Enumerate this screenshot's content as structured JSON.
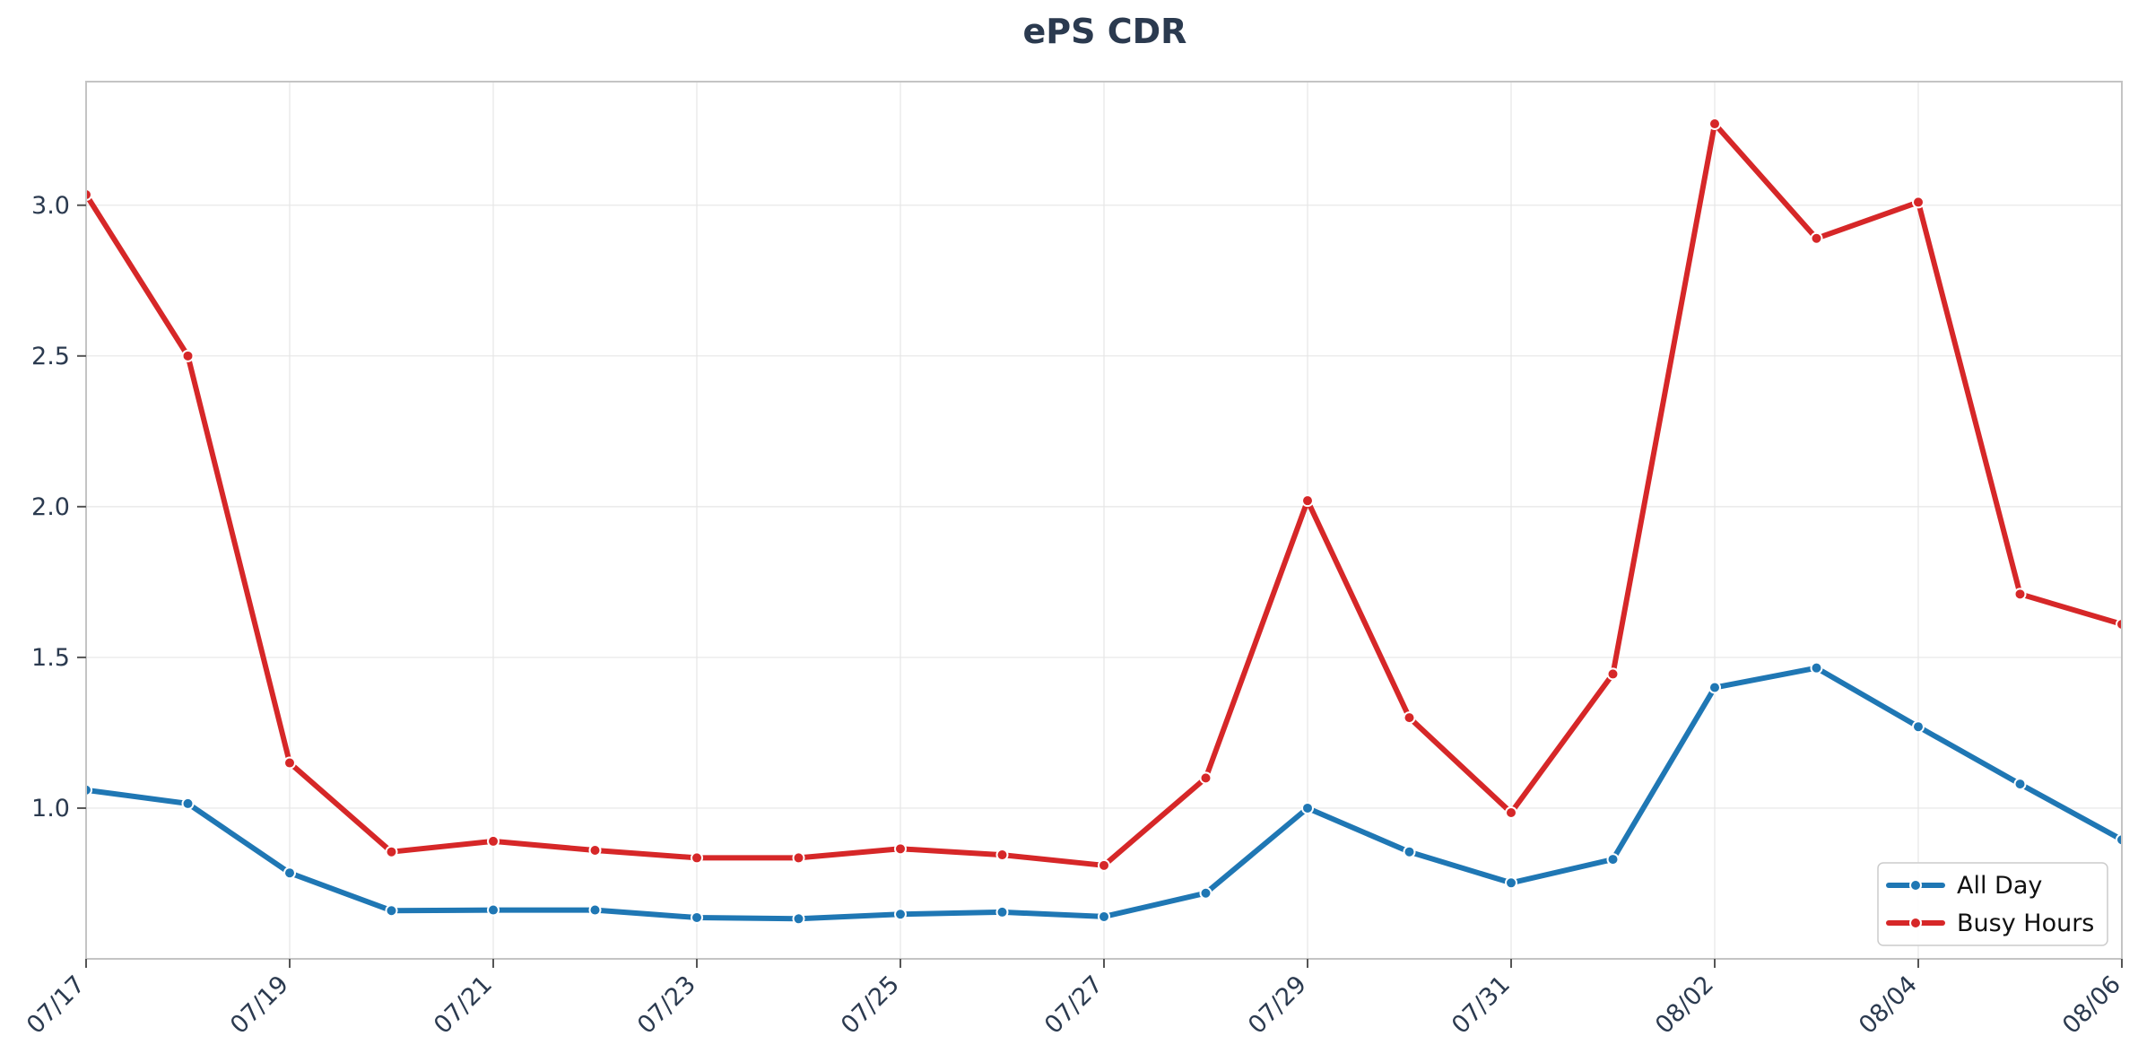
{
  "chart_data": {
    "type": "line",
    "title": "ePS CDR",
    "xlabel": "",
    "ylabel": "",
    "x": [
      "07/17",
      "07/18",
      "07/19",
      "07/20",
      "07/21",
      "07/22",
      "07/23",
      "07/24",
      "07/25",
      "07/26",
      "07/27",
      "07/28",
      "07/29",
      "07/30",
      "07/31",
      "08/01",
      "08/02",
      "08/03",
      "08/04",
      "08/05",
      "08/06"
    ],
    "x_tick_labels": [
      "07/17",
      "07/19",
      "07/21",
      "07/23",
      "07/25",
      "07/27",
      "07/29",
      "07/31",
      "08/02",
      "08/04",
      "08/06"
    ],
    "y_tick_labels": [
      "1.0",
      "1.5",
      "2.0",
      "2.5",
      "3.0"
    ],
    "ylim": [
      0.5,
      3.41
    ],
    "grid": true,
    "legend_position": "bottom-right",
    "series": [
      {
        "name": "All Day",
        "color": "#1f77b4",
        "values": [
          1.06,
          1.015,
          0.785,
          0.66,
          0.662,
          0.662,
          0.637,
          0.633,
          0.648,
          0.655,
          0.64,
          0.718,
          1.0,
          0.855,
          0.752,
          0.83,
          1.4,
          1.465,
          1.27,
          1.08,
          0.895
        ]
      },
      {
        "name": "Busy Hours",
        "color": "#d62728",
        "values": [
          3.035,
          2.5,
          1.15,
          0.855,
          0.89,
          0.86,
          0.835,
          0.835,
          0.865,
          0.845,
          0.81,
          1.1,
          2.02,
          1.3,
          0.985,
          1.445,
          3.27,
          2.89,
          3.01,
          1.71,
          1.61
        ]
      }
    ]
  }
}
